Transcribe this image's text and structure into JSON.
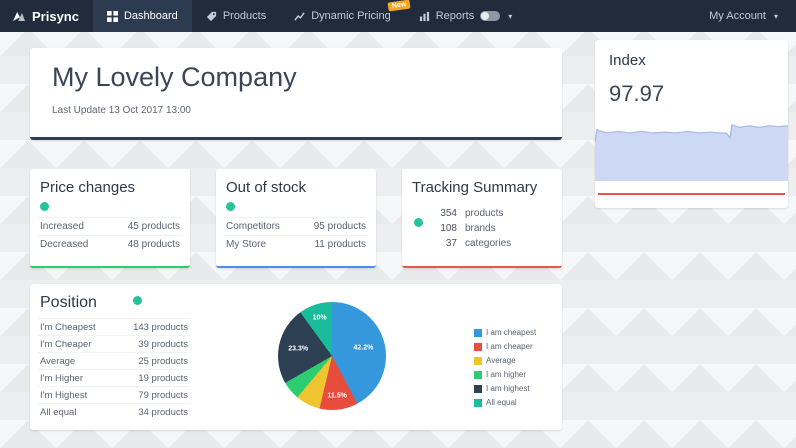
{
  "theme": {
    "accent_dot": "#27c29a",
    "navbar_bg": "#202b3b",
    "borders": {
      "company": "#2d3e52",
      "price": "#2ecc71",
      "stock": "#4a90e2",
      "tracking": "#e8564e",
      "index": "#e8564e"
    }
  },
  "navbar": {
    "brand": "Prisync",
    "items": [
      {
        "label": "Dashboard"
      },
      {
        "label": "Products"
      },
      {
        "label": "Dynamic Pricing",
        "badge": "New"
      },
      {
        "label": "Reports"
      }
    ],
    "account_label": "My Account",
    "caret": "▾"
  },
  "company": {
    "title": "My Lovely Company",
    "last_update": "Last Update 13 Oct 2017 13:00"
  },
  "index": {
    "title": "Index",
    "value": "97.97"
  },
  "price_changes": {
    "title": "Price changes",
    "rows": [
      {
        "label": "Increased",
        "value": "45 products"
      },
      {
        "label": "Decreased",
        "value": "48 products"
      }
    ]
  },
  "out_of_stock": {
    "title": "Out of stock",
    "rows": [
      {
        "label": "Competitors",
        "value": "95 products"
      },
      {
        "label": "My Store",
        "value": "11 products"
      }
    ]
  },
  "tracking_summary": {
    "title": "Tracking Summary",
    "rows": [
      {
        "value": "354",
        "label": "products"
      },
      {
        "value": "108",
        "label": "brands"
      },
      {
        "value": "37",
        "label": "categories"
      }
    ]
  },
  "position": {
    "title": "Position",
    "rows": [
      {
        "label": "I'm Cheapest",
        "value": "143 products"
      },
      {
        "label": "I'm Cheaper",
        "value": "39 products"
      },
      {
        "label": "Average",
        "value": "25 products"
      },
      {
        "label": "I'm Higher",
        "value": "19 products"
      },
      {
        "label": "I'm Highest",
        "value": "79 products"
      },
      {
        "label": "All equal",
        "value": "34 products"
      }
    ],
    "legend": [
      {
        "label": "I am cheapest",
        "color": "#3598dc"
      },
      {
        "label": "I am cheaper",
        "color": "#e74c3c"
      },
      {
        "label": "Average",
        "color": "#f0c330"
      },
      {
        "label": "I am higher",
        "color": "#2ecc71"
      },
      {
        "label": "I am highest",
        "color": "#2e4054"
      },
      {
        "label": "All equal",
        "color": "#1abc9c"
      }
    ]
  },
  "chart_data": [
    {
      "type": "area",
      "title": "Index",
      "current_value": 97.97,
      "fill_color": "#cdd9f4",
      "line_color": "#a9bdea",
      "points": [
        [
          0,
          16
        ],
        [
          1,
          8
        ],
        [
          6,
          10
        ],
        [
          12,
          9
        ],
        [
          18,
          10
        ],
        [
          24,
          9
        ],
        [
          30,
          10
        ],
        [
          36,
          9.5
        ],
        [
          42,
          10
        ],
        [
          48,
          9
        ],
        [
          54,
          10
        ],
        [
          60,
          9.5
        ],
        [
          65,
          10
        ],
        [
          68,
          10
        ],
        [
          70,
          13
        ],
        [
          71,
          5
        ],
        [
          75,
          6.5
        ],
        [
          80,
          5.5
        ],
        [
          85,
          6.5
        ],
        [
          90,
          5.5
        ],
        [
          95,
          6
        ],
        [
          100,
          5.5
        ]
      ]
    },
    {
      "type": "pie",
      "title": "Position",
      "labels": [
        "I am cheapest",
        "I am cheaper",
        "Average",
        "I am higher",
        "I am highest",
        "All equal"
      ],
      "values": [
        42.2,
        11.5,
        7.4,
        5.6,
        23.3,
        10.0
      ],
      "counts": [
        143,
        39,
        25,
        19,
        79,
        34
      ],
      "colors": [
        "#3598dc",
        "#e74c3c",
        "#f0c330",
        "#2ecc71",
        "#2e4054",
        "#1abc9c"
      ],
      "slice_labels": [
        "42.2%",
        "11.5%",
        null,
        null,
        "23.3%",
        "10%"
      ],
      "label_radius": [
        30,
        37,
        0,
        0,
        32,
        37
      ],
      "legend_position": "right"
    }
  ]
}
